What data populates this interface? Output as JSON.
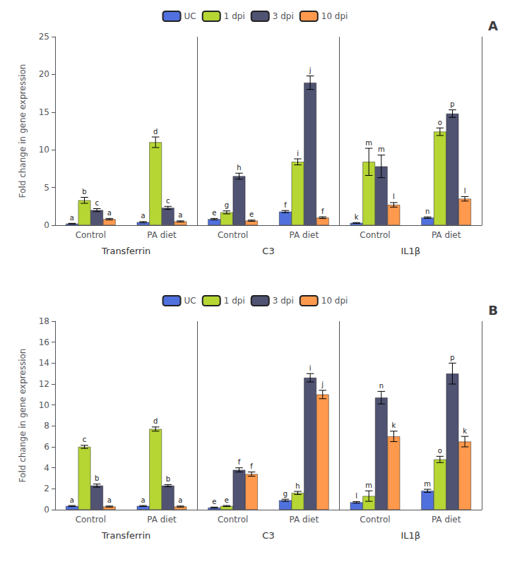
{
  "chart_data": [
    {
      "type": "bar",
      "title": "A",
      "ylabel": "Fold change in gene expression",
      "categories": [
        "Control",
        "PA diet",
        "Control",
        "PA diet",
        "Control",
        "PA diet"
      ],
      "annotations": [
        "Transferrin",
        "C3",
        "IL1β"
      ],
      "ylim": [
        0,
        25
      ],
      "yticks": [
        0,
        5,
        10,
        15,
        20,
        25
      ],
      "grid": false,
      "legend": "top",
      "series": [
        {
          "name": "UC",
          "values": [
            0.2,
            0.4,
            0.8,
            1.8,
            0.3,
            1.0
          ],
          "errors": [
            0.05,
            0.08,
            0.1,
            0.15,
            0.05,
            0.1
          ],
          "annotations": [
            "a",
            "a",
            "e",
            "f",
            "k",
            "n"
          ]
        },
        {
          "name": "1 dpi",
          "values": [
            3.3,
            11.0,
            1.7,
            8.4,
            8.4,
            12.4
          ],
          "errors": [
            0.4,
            0.7,
            0.2,
            0.4,
            1.8,
            0.5
          ],
          "annotations": [
            "b",
            "d",
            "g",
            "i",
            "m",
            "o"
          ]
        },
        {
          "name": "3 dpi",
          "values": [
            2.0,
            2.3,
            6.5,
            18.9,
            7.8,
            14.8
          ],
          "errors": [
            0.2,
            0.2,
            0.4,
            0.9,
            1.5,
            0.5
          ],
          "annotations": [
            "c",
            "c",
            "h",
            "j",
            "m",
            "p"
          ]
        },
        {
          "name": "10 dpi",
          "values": [
            0.8,
            0.5,
            0.6,
            1.0,
            2.7,
            3.5
          ],
          "errors": [
            0.1,
            0.08,
            0.08,
            0.12,
            0.3,
            0.3
          ],
          "annotations": [
            "a",
            "a",
            "e",
            "f",
            "l",
            "l"
          ]
        }
      ]
    },
    {
      "type": "bar",
      "title": "B",
      "ylabel": "Fold change in gene expression",
      "categories": [
        "Control",
        "PA diet",
        "Control",
        "PA diet",
        "Control",
        "PA diet"
      ],
      "annotations": [
        "Transferrin",
        "C3",
        "IL1β"
      ],
      "ylim": [
        0,
        18
      ],
      "yticks": [
        0,
        2,
        4,
        6,
        8,
        10,
        12,
        14,
        16,
        18
      ],
      "grid": false,
      "legend": "top",
      "series": [
        {
          "name": "UC",
          "values": [
            0.35,
            0.35,
            0.2,
            0.9,
            0.7,
            1.8
          ],
          "errors": [
            0.05,
            0.05,
            0.05,
            0.1,
            0.08,
            0.15
          ],
          "annotations": [
            "a",
            "a",
            "e",
            "g",
            "l",
            "m"
          ]
        },
        {
          "name": "1 dpi",
          "values": [
            6.0,
            7.7,
            0.35,
            1.6,
            1.3,
            4.8
          ],
          "errors": [
            0.15,
            0.2,
            0.05,
            0.15,
            0.5,
            0.3
          ],
          "annotations": [
            "c",
            "d",
            "e",
            "h",
            "m",
            "o"
          ]
        },
        {
          "name": "3 dpi",
          "values": [
            2.3,
            2.3,
            3.8,
            12.6,
            10.7,
            13.0
          ],
          "errors": [
            0.15,
            0.1,
            0.2,
            0.4,
            0.6,
            1.0
          ],
          "annotations": [
            "b",
            "b",
            "f",
            "i",
            "n",
            "p"
          ]
        },
        {
          "name": "10 dpi",
          "values": [
            0.3,
            0.3,
            3.4,
            11.0,
            7.0,
            6.5
          ],
          "errors": [
            0.05,
            0.05,
            0.2,
            0.4,
            0.5,
            0.5
          ],
          "annotations": [
            "a",
            "a",
            "f",
            "j",
            "k",
            "k"
          ]
        }
      ]
    }
  ]
}
